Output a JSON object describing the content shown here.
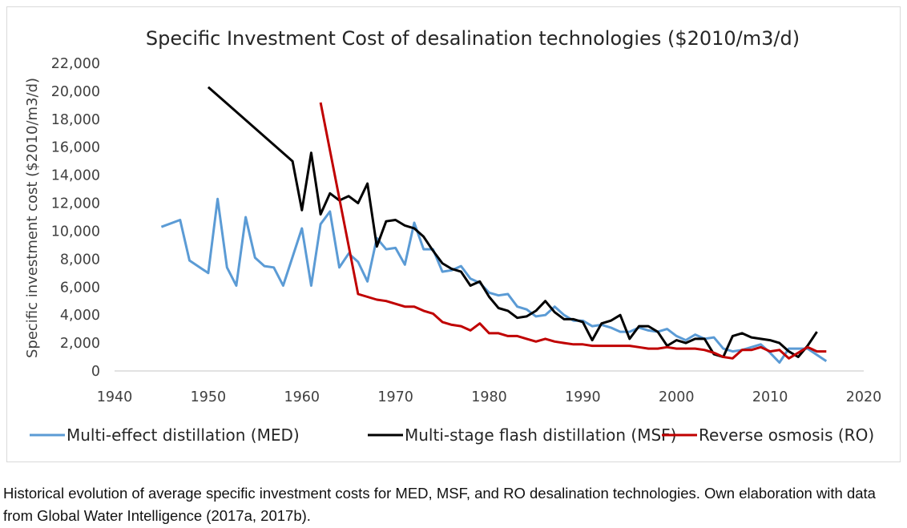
{
  "chart_data": {
    "type": "line",
    "title": "Specific Investment Cost of desalination technologies ($2010/m3/d)",
    "xlabel": "",
    "ylabel": "Specific investment cost ($2010/m3/d)",
    "xlim": [
      1940,
      2020
    ],
    "ylim": [
      0,
      22000
    ],
    "xticks": [
      "1940",
      "1950",
      "1960",
      "1970",
      "1980",
      "1990",
      "2000",
      "2010",
      "2020"
    ],
    "yticks": [
      "0",
      "2,000",
      "4,000",
      "6,000",
      "8,000",
      "10,000",
      "12,000",
      "14,000",
      "16,000",
      "18,000",
      "20,000",
      "22,000"
    ],
    "grid": false,
    "legend": "bottom",
    "series": [
      {
        "name": "Multi-effect distillation (MED)",
        "color": "#5b9bd5",
        "x": [
          1945,
          1947,
          1948,
          1950,
          1951,
          1952,
          1953,
          1954,
          1955,
          1956,
          1957,
          1958,
          1960,
          1961,
          1962,
          1963,
          1964,
          1965,
          1966,
          1967,
          1968,
          1969,
          1970,
          1971,
          1972,
          1973,
          1974,
          1975,
          1976,
          1977,
          1978,
          1979,
          1980,
          1981,
          1982,
          1983,
          1984,
          1985,
          1986,
          1987,
          1988,
          1989,
          1990,
          1991,
          1992,
          1993,
          1994,
          1995,
          1996,
          1997,
          1998,
          1999,
          2000,
          2001,
          2002,
          2003,
          2004,
          2005,
          2006,
          2007,
          2008,
          2009,
          2010,
          2011,
          2012,
          2013,
          2014,
          2016
        ],
        "y": [
          10300,
          10800,
          7900,
          7000,
          12300,
          7400,
          6100,
          11000,
          8100,
          7500,
          7400,
          6100,
          10200,
          6100,
          10500,
          11400,
          7400,
          8400,
          7800,
          6400,
          9500,
          8700,
          8800,
          7600,
          10600,
          8700,
          8700,
          7100,
          7200,
          7500,
          6600,
          6300,
          5600,
          5400,
          5500,
          4600,
          4400,
          3900,
          4000,
          4600,
          4000,
          3600,
          3600,
          3200,
          3300,
          3100,
          2800,
          2800,
          3100,
          2900,
          2800,
          3000,
          2500,
          2200,
          2600,
          2300,
          2400,
          1600,
          1400,
          1500,
          1700,
          1900,
          1300,
          600,
          1600,
          1600,
          1600,
          700
        ]
      },
      {
        "name": "Multi-stage flash distillation (MSF)",
        "color": "#000000",
        "x": [
          1950,
          1959,
          1960,
          1961,
          1962,
          1963,
          1964,
          1965,
          1966,
          1967,
          1968,
          1969,
          1970,
          1971,
          1972,
          1973,
          1974,
          1975,
          1976,
          1977,
          1978,
          1979,
          1980,
          1981,
          1982,
          1983,
          1984,
          1985,
          1986,
          1987,
          1988,
          1989,
          1990,
          1991,
          1992,
          1993,
          1994,
          1995,
          1996,
          1997,
          1998,
          1999,
          2000,
          2001,
          2002,
          2003,
          2004,
          2005,
          2006,
          2007,
          2008,
          2009,
          2010,
          2011,
          2012,
          2013,
          2014,
          2015
        ],
        "y": [
          20300,
          15000,
          11500,
          15600,
          11200,
          12700,
          12200,
          12500,
          12000,
          13400,
          8900,
          10700,
          10800,
          10400,
          10200,
          9600,
          8600,
          7700,
          7300,
          7100,
          6100,
          6400,
          5300,
          4500,
          4300,
          3800,
          3900,
          4300,
          5000,
          4200,
          3700,
          3700,
          3500,
          2200,
          3400,
          3600,
          4000,
          2300,
          3200,
          3200,
          2800,
          1800,
          2200,
          2000,
          2300,
          2300,
          1200,
          1000,
          2500,
          2700,
          2400,
          2300,
          2200,
          2000,
          1400,
          1000,
          1800,
          2800
        ]
      },
      {
        "name": "Reverse osmosis (RO)",
        "color": "#c00000",
        "x": [
          1962,
          1966,
          1967,
          1968,
          1969,
          1970,
          1971,
          1972,
          1973,
          1974,
          1975,
          1976,
          1977,
          1978,
          1979,
          1980,
          1981,
          1982,
          1983,
          1984,
          1985,
          1986,
          1987,
          1988,
          1989,
          1990,
          1991,
          1992,
          1993,
          1994,
          1995,
          1996,
          1997,
          1998,
          1999,
          2000,
          2001,
          2002,
          2003,
          2004,
          2005,
          2006,
          2007,
          2008,
          2009,
          2010,
          2011,
          2012,
          2013,
          2014,
          2015,
          2016
        ],
        "y": [
          19200,
          5500,
          5300,
          5100,
          5000,
          4800,
          4600,
          4600,
          4300,
          4100,
          3500,
          3300,
          3200,
          2900,
          3400,
          2700,
          2700,
          2500,
          2500,
          2300,
          2100,
          2300,
          2100,
          2000,
          1900,
          1900,
          1800,
          1800,
          1800,
          1800,
          1800,
          1700,
          1600,
          1600,
          1700,
          1600,
          1600,
          1600,
          1500,
          1300,
          1000,
          900,
          1500,
          1500,
          1700,
          1400,
          1500,
          900,
          1300,
          1700,
          1400,
          1400
        ]
      }
    ]
  },
  "caption": "Historical evolution of average specific investment costs for MED, MSF, and RO desalination technologies. Own elaboration with data from Global Water Intelligence (2017a, 2017b)."
}
